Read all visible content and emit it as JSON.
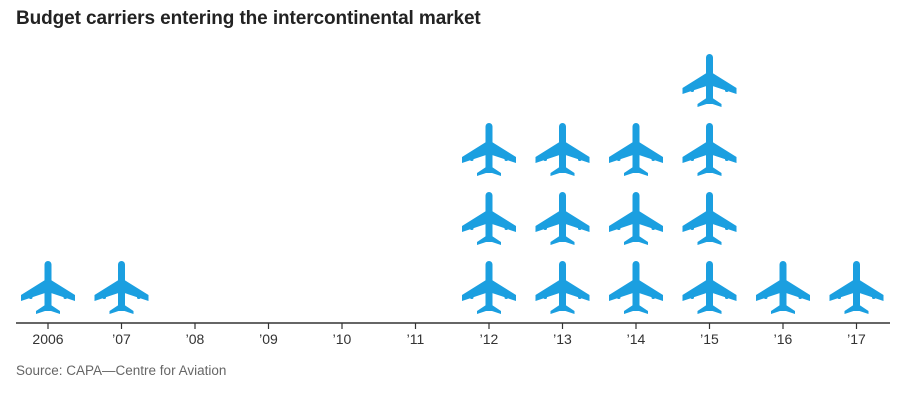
{
  "title": "Budget carriers entering the intercontinental market",
  "source": "Source: CAPA—Centre for Aviation",
  "colors": {
    "plane": "#1B9FE0",
    "axis": "#333333",
    "text": "#333333"
  },
  "icon": "airplane-icon",
  "chart_data": {
    "type": "pictogram",
    "title": "Budget carriers entering the intercontinental market",
    "xlabel": "",
    "ylabel": "",
    "categories": [
      "2006",
      "’07",
      "’08",
      "’09",
      "’10",
      "’11",
      "’12",
      "’13",
      "’14",
      "’15",
      "’16",
      "’17"
    ],
    "values": [
      1,
      1,
      0,
      0,
      0,
      0,
      3,
      3,
      3,
      4,
      1,
      1
    ],
    "ylim": [
      0,
      4
    ],
    "grid": false,
    "legend": "none"
  }
}
